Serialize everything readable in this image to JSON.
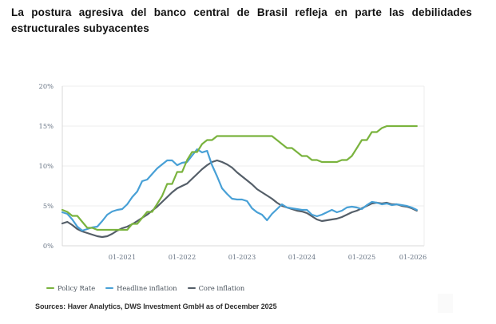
{
  "title": {
    "text": "La postura agresiva del banco central de Brasil refleja en parte las debilidades estructurales subyacentes",
    "lines": [
      "La postura agresiva del banco central de Brasil refleja en parte las debilidades",
      "estructurales subyacentes"
    ]
  },
  "source_note": "Sources: Haver Analytics, DWS Investment GmbH as of December 2025",
  "colors": {
    "policy_rate": "#7ab33e",
    "headline_inflation": "#48a0d6",
    "core_inflation": "#545e68",
    "gridline": "#ececec",
    "axis_line": "#d9d9d9",
    "axis_label": "#6a7686",
    "legend_text": "#47505a",
    "title_text": "#111111"
  },
  "chart_data": {
    "type": "line",
    "unit": "%",
    "frequency": "monthly",
    "x_start": "2020-01",
    "x_end": "2025-12",
    "grid": "horizontal",
    "legend_position": "bottom",
    "ylim": [
      0,
      20
    ],
    "yticks": [
      {
        "label": "0%",
        "value": 0
      },
      {
        "label": "5%",
        "value": 5
      },
      {
        "label": "10%",
        "value": 10
      },
      {
        "label": "15%",
        "value": 15
      },
      {
        "label": "20%",
        "value": 20
      }
    ],
    "xticks": [
      {
        "label": "01-2021",
        "month_index": 12
      },
      {
        "label": "01-2022",
        "month_index": 24
      },
      {
        "label": "01-2023",
        "month_index": 36
      },
      {
        "label": "01-2024",
        "month_index": 48
      },
      {
        "label": "01-2025",
        "month_index": 60
      },
      {
        "label": "01-2026",
        "month_index": 72
      }
    ],
    "series": [
      {
        "id": "policy-rate",
        "name": "Policy Rate",
        "color": "#7ab33e",
        "values": [
          4.5,
          4.25,
          3.75,
          3.75,
          3.0,
          2.25,
          2.25,
          2.0,
          2.0,
          2.0,
          2.0,
          2.0,
          2.0,
          2.0,
          2.75,
          2.75,
          3.5,
          4.25,
          4.25,
          5.25,
          6.25,
          7.75,
          7.75,
          9.25,
          9.25,
          10.75,
          11.75,
          11.75,
          12.75,
          13.25,
          13.25,
          13.75,
          13.75,
          13.75,
          13.75,
          13.75,
          13.75,
          13.75,
          13.75,
          13.75,
          13.75,
          13.75,
          13.75,
          13.25,
          12.75,
          12.25,
          12.25,
          11.75,
          11.25,
          11.25,
          10.75,
          10.75,
          10.5,
          10.5,
          10.5,
          10.5,
          10.75,
          10.75,
          11.25,
          12.25,
          13.25,
          13.25,
          14.25,
          14.25,
          14.75,
          15.0,
          15.0,
          15.0,
          15.0,
          15.0,
          15.0,
          15.0
        ]
      },
      {
        "id": "headline-inflation",
        "name": "Headline inflation",
        "color": "#48a0d6",
        "values": [
          4.2,
          4.0,
          3.3,
          2.4,
          1.9,
          2.1,
          2.3,
          2.4,
          3.1,
          3.9,
          4.3,
          4.5,
          4.6,
          5.2,
          6.1,
          6.8,
          8.1,
          8.3,
          9.0,
          9.7,
          10.2,
          10.7,
          10.7,
          10.1,
          10.4,
          10.5,
          11.3,
          12.1,
          11.7,
          11.9,
          10.1,
          8.7,
          7.2,
          6.5,
          5.9,
          5.8,
          5.8,
          5.6,
          4.7,
          4.2,
          3.9,
          3.2,
          4.0,
          4.6,
          5.2,
          4.8,
          4.7,
          4.6,
          4.5,
          4.5,
          3.9,
          3.7,
          3.9,
          4.2,
          4.5,
          4.2,
          4.4,
          4.8,
          4.9,
          4.8,
          4.6,
          5.1,
          5.5,
          5.4,
          5.2,
          5.3,
          5.1,
          5.2,
          5.1,
          5.0,
          4.8,
          4.5
        ]
      },
      {
        "id": "core-inflation",
        "name": "Core inflation",
        "color": "#545e68",
        "values": [
          2.8,
          3.0,
          2.6,
          2.1,
          1.8,
          1.6,
          1.4,
          1.2,
          1.1,
          1.2,
          1.5,
          1.9,
          2.2,
          2.4,
          2.7,
          3.1,
          3.5,
          3.9,
          4.4,
          4.9,
          5.5,
          6.1,
          6.7,
          7.2,
          7.5,
          7.8,
          8.4,
          9.0,
          9.6,
          10.1,
          10.5,
          10.7,
          10.5,
          10.2,
          9.8,
          9.2,
          8.7,
          8.2,
          7.7,
          7.1,
          6.7,
          6.3,
          5.9,
          5.4,
          5.0,
          4.8,
          4.6,
          4.4,
          4.3,
          4.1,
          3.7,
          3.3,
          3.1,
          3.2,
          3.3,
          3.4,
          3.6,
          3.9,
          4.2,
          4.4,
          4.7,
          5.0,
          5.3,
          5.4,
          5.3,
          5.4,
          5.2,
          5.2,
          5.0,
          4.9,
          4.7,
          4.4
        ]
      }
    ]
  }
}
